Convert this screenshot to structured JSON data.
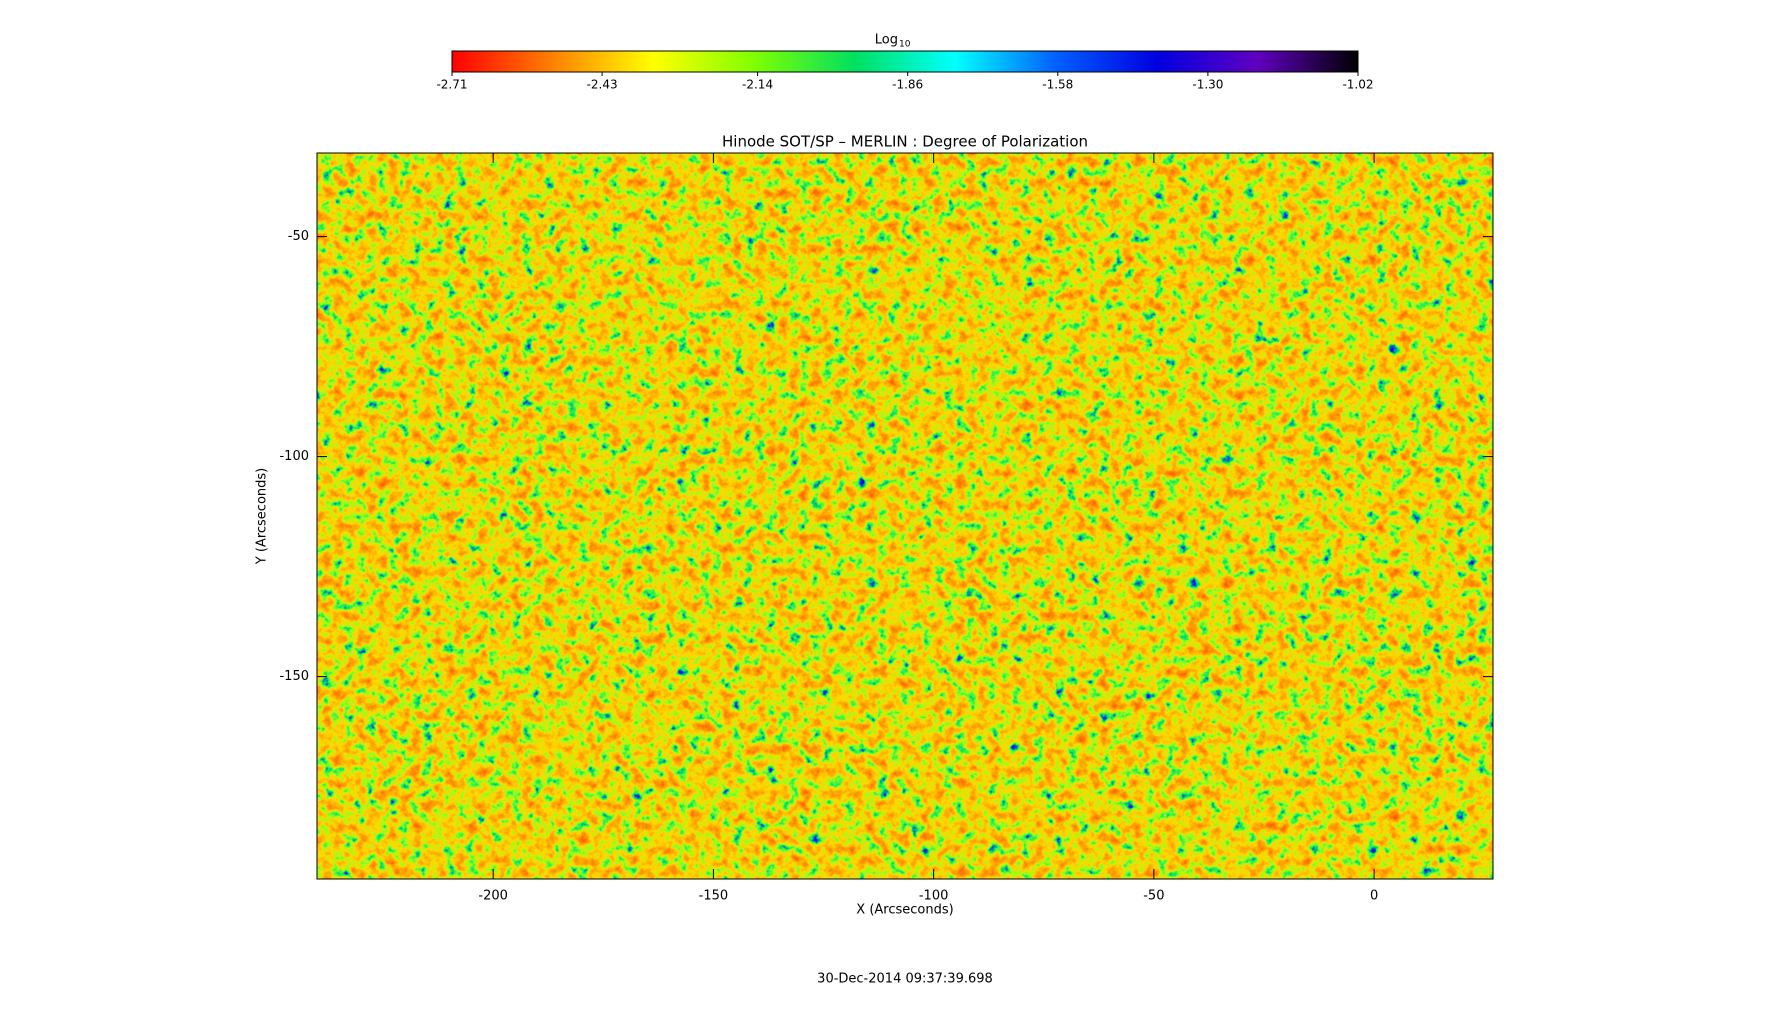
{
  "chart_data": {
    "type": "image",
    "title": "Hinode SOT/SP – MERLIN : Degree of Polarization",
    "x_label": "X (Arcseconds)",
    "y_label": "Y (Arcseconds)",
    "xlim": [
      -240,
      27
    ],
    "xticks": [
      -200,
      -150,
      -100,
      -50,
      0
    ],
    "ylim": [
      -196,
      -31
    ],
    "yticks": [
      -150,
      -100,
      -50
    ],
    "colorbar": {
      "label": "Log",
      "label_sub": "10",
      "lim": [
        -2.71,
        -1.02
      ],
      "ticks": [
        -2.71,
        -2.43,
        -2.14,
        -1.86,
        -1.58,
        -1.3,
        -1.02
      ],
      "tick_labels": [
        "-2.71",
        "-2.43",
        "-2.14",
        "-1.86",
        "-1.58",
        "-1.30",
        "-1.02"
      ],
      "colors": [
        "#ff0000",
        "#ff8000",
        "#ffff00",
        "#80ff00",
        "#00e060",
        "#00ffff",
        "#0060ff",
        "#0000e0",
        "#6000c0",
        "#000000"
      ]
    },
    "footer": "30-Dec-2014 09:37:39.698"
  }
}
